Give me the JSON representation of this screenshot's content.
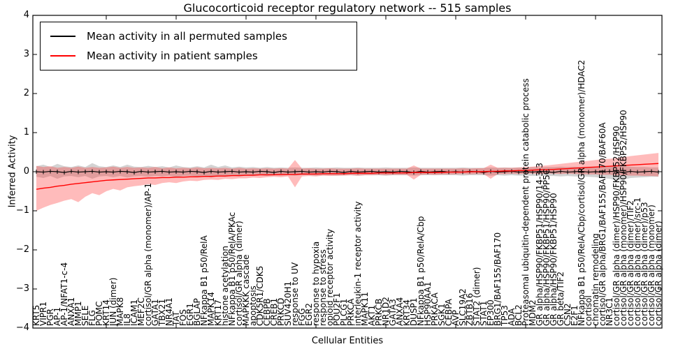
{
  "title": "Glucocorticoid receptor regulatory network -- 515 samples",
  "legend": {
    "items": [
      {
        "label": "Mean activity in all permuted samples",
        "color": "#000000"
      },
      {
        "label": "Mean activity in patient samples",
        "color": "#ff0000"
      }
    ]
  },
  "chart_data": {
    "type": "line",
    "title": "Glucocorticoid receptor regulatory network -- 515 samples",
    "xlabel": "Cellular Entities",
    "ylabel": "Inferred Activity",
    "ylim": [
      -4,
      4
    ],
    "grid": false,
    "legend_position": "upper left",
    "yticks": [
      "4",
      "3",
      "2",
      "1",
      "0",
      "−1",
      "−2",
      "−3",
      "−4"
    ],
    "ytick_values": [
      4,
      3,
      2,
      1,
      0,
      -1,
      -2,
      -3,
      -4
    ],
    "entities": [
      "KRT5",
      "VIPR1",
      "PGR",
      "AP-1",
      "AP-1/NFAT1-c-4",
      "ANXA1",
      "MMP1",
      "SELE",
      "FLG",
      "POMC",
      "KRT14",
      "JUN (dimer)",
      "MAPK8",
      "IL8",
      "ICAM1",
      "MEF2C",
      "cortisol/GR alpha (monomer)/AP-1",
      "GATA1",
      "TBX21",
      "NR4A1",
      "TAT",
      "FOS",
      "EGR1",
      "BGLAP",
      "NFkappa B1 p50/RelA",
      "MAPK14",
      "KRT17",
      "histone acetylation",
      "NFkappa B1 p50/RelA/PKAc",
      "cortisol/GR alpha (dimer)",
      "MAPKKK cascade",
      "apoptosis",
      "CDK5R1/CDK5",
      "CEBPB",
      "CREB1",
      "PRKCD",
      "SUV420H1",
      "response to UV",
      "FGG",
      "EGR2",
      "response to hypoxia",
      "response to stress",
      "opioid receptor activity",
      "POU2F1",
      "PLCG1",
      "PRKCA",
      "interleukin-1 receptor activity",
      "MAPK11",
      "AKT1",
      "PRKCB",
      "NR1D2",
      "GATA3",
      "ANXA4",
      "KRT34",
      "DUSP1",
      "NFkappa B1 p50/RelA/Cbp",
      "HSP90AA1",
      "PRKACA",
      "SGK1",
      "CEBPA",
      "AVP",
      "SLC19A2",
      "ZBTB16",
      "STAT2 (dimer)",
      "STAT1",
      "EP300",
      "BRG1/BAF155/BAF170",
      "TP53",
      "ADA",
      "BCL2",
      "Proteasomal ubiquitin-dependent protein catabolic process",
      "MDM2",
      "GR alpha/HSP90/FKBP51/HSP90/14-3-3",
      "GR alpha/HSP90/FKBP51/HSP90/PP5C",
      "GR alpha/HSP90/FKBP51/HSP90",
      "GR beta/TIF2",
      "CSN2",
      "E2F1",
      "NFkappa B1 p50/RelA/Cbp/cortisol/GR alpha (monomer)/HDAC2",
      "cortisol",
      "chromatin remodeling",
      "cortisol/GR alpha/BRG1/BAF155/BAF170/BAF60A",
      "NR3C1",
      "cortisol/GR alpha (dimer)/HSP90/FKBP52/HSP90",
      "cortisol/GR alpha (monomer)/HSP90/FKBP52/HSP90",
      "cortisol/GR alpha (dimer)/TIF2",
      "cortisol/GR alpha (dimer)/src-1",
      "cortisol/GR alpha (dimer)/p53",
      "cortisol/GR alpha (monomer)",
      "cortisol/GR alpha (dimer)"
    ],
    "series": [
      {
        "name": "Mean activity in all permuted samples",
        "color": "#000000",
        "values": [
          0.0,
          -0.01,
          0.01,
          0.0,
          -0.02,
          0.01,
          -0.01,
          0.0,
          0.01,
          -0.01,
          0.0,
          -0.01,
          0.01,
          0.0,
          -0.02,
          0.01,
          -0.01,
          0.0,
          0.01,
          -0.01,
          0.0,
          -0.01,
          0.01,
          0.0,
          -0.02,
          0.01,
          -0.01,
          0.0,
          0.01,
          -0.01,
          0.0,
          -0.01,
          0.01,
          0.0,
          -0.02,
          0.01,
          -0.01,
          0.0,
          0.01,
          -0.01,
          0.0,
          -0.01,
          0.01,
          0.0,
          -0.02,
          0.01,
          -0.01,
          0.0,
          0.01,
          -0.01,
          0.0,
          -0.01,
          0.01,
          0.0,
          -0.02,
          0.01,
          -0.01,
          0.0,
          0.01,
          -0.01,
          0.0,
          -0.01,
          0.01,
          0.0,
          -0.02,
          0.01,
          -0.01,
          0.0,
          0.01,
          -0.01,
          0.0,
          -0.01,
          0.01,
          0.0,
          -0.02,
          0.01,
          -0.01,
          0.0,
          0.01,
          -0.01,
          0.0,
          -0.01,
          0.01,
          0.0,
          -0.02,
          0.01,
          -0.01,
          0.0,
          0.01,
          -0.01
        ],
        "band_upper": [
          0.14,
          0.18,
          0.12,
          0.2,
          0.14,
          0.12,
          0.16,
          0.12,
          0.22,
          0.14,
          0.12,
          0.16,
          0.12,
          0.18,
          0.13,
          0.12,
          0.15,
          0.12,
          0.14,
          0.11,
          0.16,
          0.12,
          0.11,
          0.14,
          0.11,
          0.18,
          0.12,
          0.16,
          0.11,
          0.13,
          0.11,
          0.12,
          0.1,
          0.12,
          0.1,
          0.11,
          0.1,
          0.11,
          0.1,
          0.1,
          0.11,
          0.1,
          0.1,
          0.11,
          0.1,
          0.1,
          0.11,
          0.1,
          0.1,
          0.1,
          0.11,
          0.1,
          0.1,
          0.1,
          0.11,
          0.1,
          0.1,
          0.1,
          0.1,
          0.1,
          0.1,
          0.11,
          0.1,
          0.1,
          0.1,
          0.11,
          0.1,
          0.11,
          0.1,
          0.11,
          0.11,
          0.12,
          0.11,
          0.12,
          0.12,
          0.13,
          0.12,
          0.13,
          0.12,
          0.13,
          0.13,
          0.14,
          0.13,
          0.15,
          0.14,
          0.13,
          0.12,
          0.12,
          0.11,
          0.11
        ],
        "band_lower": [
          -0.13,
          -0.16,
          -0.11,
          -0.18,
          -0.12,
          -0.11,
          -0.14,
          -0.11,
          -0.18,
          -0.12,
          -0.11,
          -0.14,
          -0.11,
          -0.15,
          -0.12,
          -0.11,
          -0.13,
          -0.11,
          -0.12,
          -0.1,
          -0.14,
          -0.11,
          -0.1,
          -0.12,
          -0.1,
          -0.15,
          -0.11,
          -0.13,
          -0.1,
          -0.12,
          -0.1,
          -0.11,
          -0.09,
          -0.11,
          -0.09,
          -0.1,
          -0.09,
          -0.1,
          -0.09,
          -0.09,
          -0.1,
          -0.09,
          -0.09,
          -0.1,
          -0.09,
          -0.09,
          -0.1,
          -0.09,
          -0.09,
          -0.09,
          -0.1,
          -0.09,
          -0.09,
          -0.09,
          -0.1,
          -0.09,
          -0.09,
          -0.09,
          -0.09,
          -0.09,
          -0.09,
          -0.1,
          -0.09,
          -0.09,
          -0.09,
          -0.1,
          -0.09,
          -0.1,
          -0.09,
          -0.1,
          -0.1,
          -0.11,
          -0.1,
          -0.11,
          -0.11,
          -0.12,
          -0.11,
          -0.12,
          -0.12,
          -0.13,
          -0.14,
          -0.16,
          -0.18,
          -0.22,
          -0.2,
          -0.16,
          -0.15,
          -0.14,
          -0.13,
          -0.13
        ]
      },
      {
        "name": "Mean activity in patient samples",
        "color": "#ff0000",
        "values": [
          -0.45,
          -0.42,
          -0.4,
          -0.37,
          -0.35,
          -0.32,
          -0.3,
          -0.28,
          -0.26,
          -0.24,
          -0.22,
          -0.21,
          -0.2,
          -0.19,
          -0.18,
          -0.17,
          -0.16,
          -0.16,
          -0.15,
          -0.15,
          -0.14,
          -0.14,
          -0.13,
          -0.13,
          -0.12,
          -0.12,
          -0.11,
          -0.11,
          -0.1,
          -0.1,
          -0.09,
          -0.09,
          -0.08,
          -0.08,
          -0.08,
          -0.07,
          -0.07,
          -0.07,
          -0.06,
          -0.06,
          -0.06,
          -0.05,
          -0.05,
          -0.05,
          -0.05,
          -0.04,
          -0.04,
          -0.04,
          -0.04,
          -0.03,
          -0.03,
          -0.03,
          -0.03,
          -0.03,
          -0.02,
          -0.02,
          -0.02,
          -0.02,
          -0.02,
          -0.01,
          -0.01,
          -0.01,
          0.0,
          0.0,
          0.0,
          0.01,
          0.01,
          0.02,
          0.02,
          0.03,
          0.03,
          0.04,
          0.05,
          0.05,
          0.06,
          0.07,
          0.08,
          0.09,
          0.1,
          0.11,
          0.12,
          0.13,
          0.14,
          0.15,
          0.16,
          0.17,
          0.18,
          0.19,
          0.2,
          0.21
        ],
        "band_upper": [
          0.15,
          0.12,
          0.14,
          0.1,
          0.12,
          0.1,
          0.13,
          0.1,
          0.12,
          0.1,
          0.11,
          0.13,
          0.1,
          0.12,
          0.1,
          0.11,
          0.1,
          0.12,
          0.09,
          0.11,
          0.09,
          0.1,
          0.09,
          0.11,
          0.09,
          0.1,
          0.09,
          0.1,
          0.08,
          0.1,
          0.08,
          0.09,
          0.08,
          0.09,
          0.08,
          0.09,
          0.08,
          0.3,
          0.08,
          0.09,
          0.08,
          0.08,
          0.09,
          0.08,
          0.08,
          0.08,
          0.09,
          0.08,
          0.08,
          0.08,
          0.08,
          0.08,
          0.08,
          0.08,
          0.16,
          0.08,
          0.08,
          0.08,
          0.08,
          0.08,
          0.08,
          0.09,
          0.08,
          0.09,
          0.09,
          0.18,
          0.1,
          0.1,
          0.1,
          0.11,
          0.12,
          0.13,
          0.15,
          0.16,
          0.18,
          0.2,
          0.22,
          0.24,
          0.26,
          0.28,
          0.3,
          0.32,
          0.33,
          0.35,
          0.37,
          0.4,
          0.42,
          0.44,
          0.46,
          0.48
        ],
        "band_lower": [
          -1.0,
          -0.92,
          -0.85,
          -0.8,
          -0.74,
          -0.7,
          -0.78,
          -0.64,
          -0.55,
          -0.6,
          -0.5,
          -0.44,
          -0.48,
          -0.4,
          -0.37,
          -0.35,
          -0.32,
          -0.34,
          -0.29,
          -0.27,
          -0.29,
          -0.25,
          -0.23,
          -0.24,
          -0.21,
          -0.2,
          -0.21,
          -0.18,
          -0.19,
          -0.17,
          -0.17,
          -0.15,
          -0.16,
          -0.14,
          -0.13,
          -0.14,
          -0.12,
          -0.4,
          -0.12,
          -0.11,
          -0.12,
          -0.1,
          -0.11,
          -0.1,
          -0.1,
          -0.09,
          -0.1,
          -0.09,
          -0.09,
          -0.08,
          -0.09,
          -0.08,
          -0.08,
          -0.08,
          -0.2,
          -0.08,
          -0.07,
          -0.08,
          -0.07,
          -0.07,
          -0.07,
          -0.06,
          -0.07,
          -0.06,
          -0.06,
          -0.18,
          -0.06,
          -0.06,
          -0.05,
          -0.06,
          -0.05,
          -0.05,
          -0.06,
          -0.05,
          -0.05,
          -0.06,
          -0.05,
          -0.06,
          -0.06,
          -0.07,
          -0.07,
          -0.08,
          -0.08,
          -0.09,
          -0.09,
          -0.1,
          -0.1,
          -0.11,
          -0.11,
          -0.12
        ]
      }
    ],
    "band_colors": {
      "permuted": "rgba(128,128,128,0.35)",
      "patient": "rgba(255,50,50,0.33)"
    }
  }
}
